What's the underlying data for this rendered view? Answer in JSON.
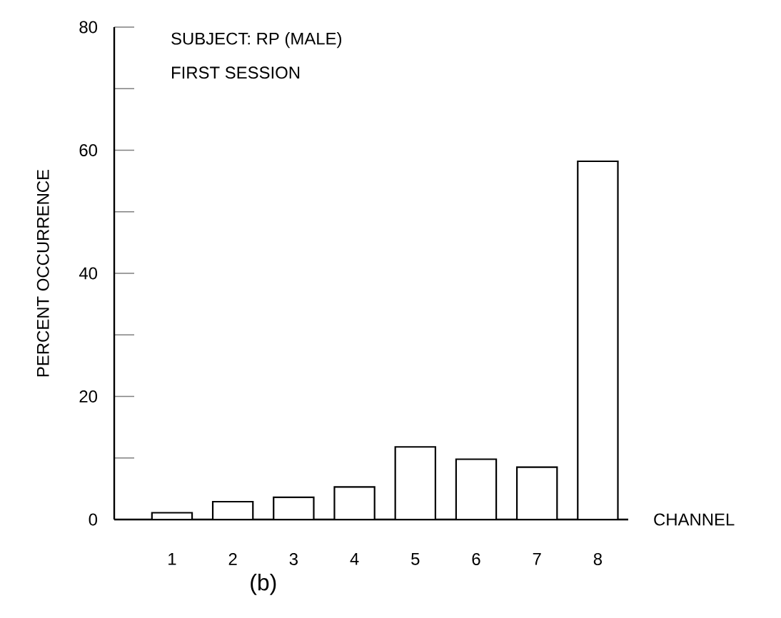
{
  "chart_data": {
    "type": "bar",
    "title": "SUBJECT: RP (MALE)",
    "subtitle": "FIRST SESSION",
    "xlabel": "CHANNEL",
    "ylabel": "PERCENT OCCURRENCE",
    "annotations": [
      "(b)"
    ],
    "categories": [
      "1",
      "2",
      "3",
      "4",
      "5",
      "6",
      "7",
      "8"
    ],
    "values": [
      1.1,
      2.9,
      3.6,
      5.3,
      11.8,
      9.8,
      8.5,
      58.2
    ],
    "color": "#ffffff",
    "ylim": [
      0,
      80
    ],
    "yticks": [
      0,
      {
        "value": 10,
        "label": null
      },
      20,
      {
        "value": 30,
        "label": null
      },
      40,
      {
        "value": 50,
        "label": null
      },
      60,
      {
        "value": 70,
        "label": null
      },
      80
    ]
  }
}
